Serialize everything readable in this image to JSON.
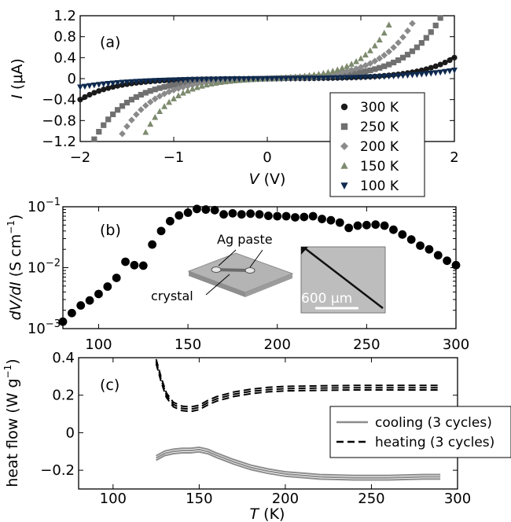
{
  "chart_data": [
    {
      "type": "scatter",
      "panel_label": "(a)",
      "xlabel_var": "V",
      "xlabel_unit": " (V)",
      "ylabel_var": "I",
      "ylabel_unit": " (μA)",
      "xlim": [
        -2,
        2
      ],
      "ylim": [
        -1.2,
        1.2
      ],
      "xticks": [
        "−2",
        "−1",
        "0",
        "1",
        "2"
      ],
      "yticks": [
        "1.2",
        "0.8",
        "0.4",
        "0",
        "−0.4",
        "−0.8",
        "−1.2"
      ],
      "legend_position": "bottom-right",
      "series": [
        {
          "name": "300 K",
          "marker": "circle",
          "color": "#1a1a1a",
          "params": {
            "a": 0.002,
            "b": 2.65
          }
        },
        {
          "name": "250 K",
          "marker": "square",
          "color": "#707070",
          "params": {
            "a": 0.0086,
            "b": 2.65
          }
        },
        {
          "name": "200 K",
          "marker": "diamond",
          "color": "#8a8a8a",
          "params": {
            "a": 0.0125,
            "b": 2.86
          }
        },
        {
          "name": "150 K",
          "marker": "triangle-up",
          "color": "#7d8a6e",
          "params": {
            "a": 0.0146,
            "b": 3.27
          }
        },
        {
          "name": "100 K",
          "marker": "triangle-down",
          "color": "#0f2a4f",
          "params": {
            "a": 0.0044,
            "b": 1.8
          }
        }
      ]
    },
    {
      "type": "scatter",
      "panel_label": "(b)",
      "yscale": "log",
      "xlim": [
        80,
        300
      ],
      "ylim": [
        0.001,
        0.1
      ],
      "xticks": [
        "100",
        "150",
        "200",
        "250",
        "300"
      ],
      "ylabel": "dV/dI (S cm",
      "ylabel_sup": "−1",
      "yticks_base": "10",
      "yticks_exp": [
        "−1",
        "−2",
        "−3"
      ],
      "x": [
        80,
        85,
        90,
        95,
        100,
        105,
        110,
        115,
        120,
        125,
        130,
        135,
        140,
        145,
        150,
        155,
        160,
        165,
        170,
        175,
        180,
        185,
        190,
        195,
        200,
        205,
        210,
        215,
        220,
        225,
        230,
        235,
        240,
        245,
        250,
        255,
        260,
        265,
        270,
        275,
        280,
        285,
        290,
        295,
        300
      ],
      "y": [
        0.0013,
        0.0018,
        0.0024,
        0.0029,
        0.0037,
        0.0049,
        0.0068,
        0.0125,
        0.011,
        0.0108,
        0.024,
        0.04,
        0.058,
        0.072,
        0.08,
        0.092,
        0.09,
        0.088,
        0.075,
        0.078,
        0.075,
        0.077,
        0.075,
        0.071,
        0.07,
        0.07,
        0.067,
        0.068,
        0.07,
        0.063,
        0.06,
        0.055,
        0.045,
        0.049,
        0.05,
        0.051,
        0.049,
        0.042,
        0.035,
        0.029,
        0.023,
        0.02,
        0.016,
        0.013,
        0.011
      ],
      "inset_labels": {
        "ag_paste": "Ag paste",
        "crystal": "crystal",
        "scale_bar": "600 μm"
      }
    },
    {
      "type": "line",
      "panel_label": "(c)",
      "xlim": [
        80,
        300
      ],
      "ylim": [
        -0.3,
        0.4
      ],
      "xticks": [
        "100",
        "150",
        "200",
        "250",
        "300"
      ],
      "yticks": [
        "0.4",
        "0.2",
        "0",
        "−0.2"
      ],
      "xlabel_var": "T",
      "xlabel_unit": " (K)",
      "ylabel": "heat flow (W g",
      "ylabel_sup": "−1",
      "legend_position": "right",
      "series": [
        {
          "name": "heating (3 cycles)",
          "style": "dashed",
          "color": "#000000",
          "x": [
            125,
            128,
            131,
            135,
            140,
            145,
            150,
            155,
            160,
            170,
            180,
            190,
            200,
            220,
            240,
            260,
            280,
            290
          ],
          "y": [
            0.38,
            0.28,
            0.2,
            0.15,
            0.13,
            0.125,
            0.135,
            0.16,
            0.18,
            0.205,
            0.22,
            0.23,
            0.235,
            0.238,
            0.24,
            0.24,
            0.24,
            0.24
          ]
        },
        {
          "name": "cooling (3 cycles)",
          "style": "solid",
          "color": "#8c8c8c",
          "x": [
            125,
            130,
            135,
            140,
            145,
            150,
            155,
            160,
            170,
            180,
            190,
            200,
            220,
            240,
            260,
            280,
            290
          ],
          "y": [
            -0.135,
            -0.11,
            -0.1,
            -0.095,
            -0.095,
            -0.09,
            -0.1,
            -0.12,
            -0.155,
            -0.185,
            -0.205,
            -0.22,
            -0.235,
            -0.24,
            -0.24,
            -0.235,
            -0.235
          ]
        }
      ]
    }
  ]
}
